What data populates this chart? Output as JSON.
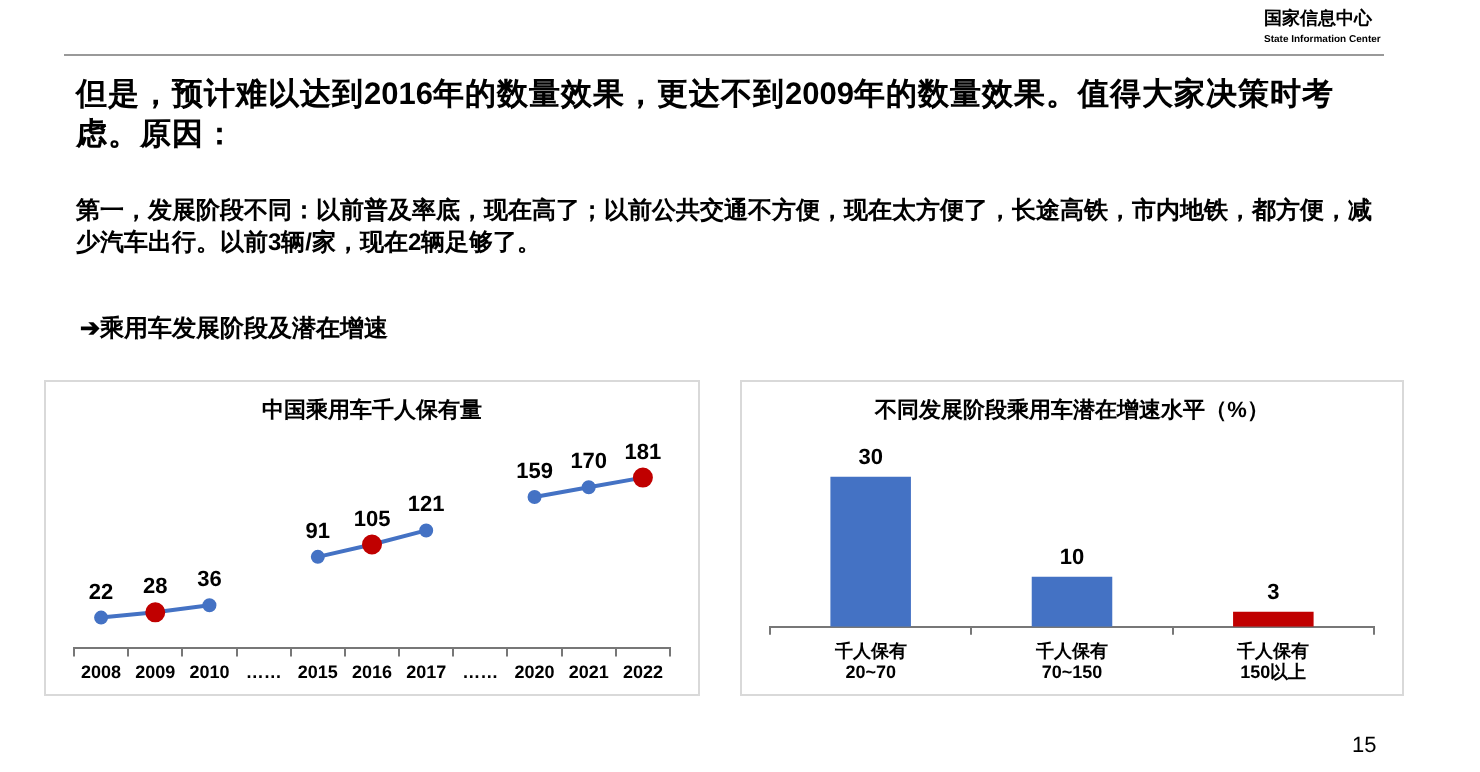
{
  "chart_data": [
    {
      "type": "line",
      "title": "中国乘用车千人保有量",
      "annotations": [
        "国家信息中心",
        "State Information Center",
        "但是，预计难以达到2016年的数量效果，更达不到2009年的数量效果。值得大家决策时考虑。原因：",
        "第一，发展阶段不同：以前普及率底，现在高了；以前公共交通不方便，现在太方便了，长途高铁，市内地铁，都方便，减少汽车出行。以前3辆/家，现在2辆足够了。",
        "➔乘用车发展阶段及潜在增速"
      ],
      "categories": [
        "2008",
        "2009",
        "2010",
        "……",
        "2015",
        "2016",
        "2017",
        "……",
        "2020",
        "2021",
        "2022"
      ],
      "series": [
        {
          "color": "#4472c4",
          "values": [
            22,
            28,
            36,
            null,
            91,
            105,
            121,
            null,
            159,
            170,
            181
          ],
          "colors": [
            "#4472c4",
            "#c00000",
            "#4472c4",
            "#4472c4",
            "#4472c4",
            "#c00000",
            "#4472c4",
            "#4472c4",
            "#4472c4",
            "#4472c4",
            "#c00000"
          ]
        }
      ],
      "marker": "circle",
      "data_labels": true,
      "grid": false,
      "legend": false,
      "tick_labels": "x"
    },
    {
      "type": "bar",
      "title": "不同发展阶段乘用车潜在增速水平（%）",
      "annotations": [
        "15"
      ],
      "categories": [
        "千人保有\n20~70",
        "千人保有\n70~150",
        "千人保有\n150以上"
      ],
      "values": [
        30,
        10,
        3
      ],
      "colors": [
        "#4472c4",
        "#4472c4",
        "#c00000"
      ],
      "data_labels": true,
      "grid": false,
      "legend": false,
      "tick_labels": "x"
    }
  ]
}
